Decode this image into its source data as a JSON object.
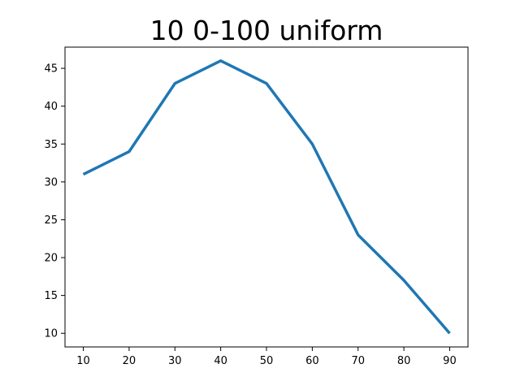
{
  "chart_data": {
    "type": "line",
    "title": "10 0-100 uniform",
    "xlabel": "",
    "ylabel": "",
    "x": [
      10,
      20,
      30,
      40,
      50,
      60,
      70,
      80,
      90
    ],
    "series": [
      {
        "values": [
          31,
          34,
          43,
          46,
          43,
          35,
          23,
          17,
          10
        ],
        "color": "#1f77b4"
      }
    ],
    "xlim": [
      6,
      94
    ],
    "ylim": [
      8.2,
      47.8
    ],
    "xticks": [
      10,
      20,
      30,
      40,
      50,
      60,
      70,
      80,
      90
    ],
    "yticks": [
      10,
      15,
      20,
      25,
      30,
      35,
      40,
      45
    ],
    "grid": false,
    "legend": "none"
  }
}
